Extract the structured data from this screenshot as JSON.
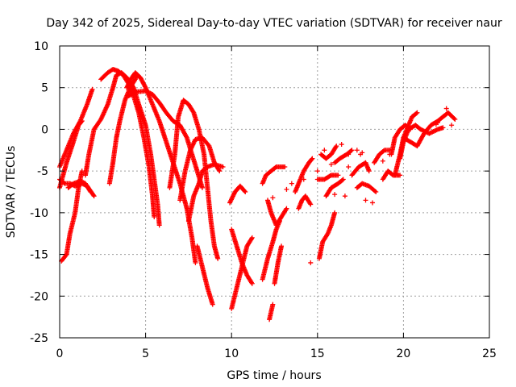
{
  "chart_data": {
    "type": "scatter",
    "title": "Day 342 of 2025, Sidereal Day-to-day VTEC variation (SDTVAR) for receiver naur",
    "xlabel": "GPS time / hours",
    "ylabel": "SDTVAR / TECUs",
    "xlim": [
      0,
      25
    ],
    "ylim": [
      -25,
      10
    ],
    "xticks": [
      0,
      5,
      10,
      15,
      20,
      25
    ],
    "yticks": [
      -25,
      -20,
      -15,
      -10,
      -5,
      0,
      5,
      10
    ],
    "xtick_labels": [
      "0",
      "5",
      "10",
      "15",
      "20",
      "25"
    ],
    "ytick_labels": [
      "-25",
      "-20",
      "-15",
      "-10",
      "-5",
      "0",
      "5",
      "10"
    ],
    "grid": true,
    "marker": "plus",
    "color": "#ff0000",
    "tracks": [
      [
        [
          0.0,
          -4.5
        ],
        [
          0.4,
          -2.5
        ],
        [
          0.8,
          -0.5
        ],
        [
          1.2,
          1.0
        ],
        [
          1.6,
          3.0
        ],
        [
          1.9,
          4.8
        ]
      ],
      [
        [
          0.0,
          -7.0
        ],
        [
          0.4,
          -4.0
        ],
        [
          0.8,
          -1.5
        ],
        [
          1.1,
          0.5
        ],
        [
          1.3,
          1.0
        ]
      ],
      [
        [
          0.0,
          -6.0
        ],
        [
          0.3,
          -6.5
        ],
        [
          0.6,
          -6.5
        ],
        [
          0.9,
          -6.8
        ],
        [
          1.3,
          -6.5
        ],
        [
          1.6,
          -6.8
        ],
        [
          2.0,
          -8.0
        ]
      ],
      [
        [
          0.1,
          -15.8
        ],
        [
          0.4,
          -15.0
        ],
        [
          0.6,
          -12.5
        ],
        [
          0.9,
          -10.0
        ],
        [
          1.1,
          -7.0
        ],
        [
          1.3,
          -5.0
        ]
      ],
      [
        [
          0.5,
          -7.0
        ],
        [
          0.8,
          -6.5
        ],
        [
          1.2,
          -6.2
        ],
        [
          1.5,
          -6.5
        ],
        [
          1.8,
          -7.5
        ]
      ],
      [
        [
          1.5,
          -5.5
        ],
        [
          1.7,
          -3.0
        ],
        [
          2.0,
          0.0
        ],
        [
          2.4,
          1.2
        ],
        [
          2.8,
          3.0
        ],
        [
          3.1,
          5.0
        ],
        [
          3.3,
          6.5
        ],
        [
          3.6,
          6.8
        ],
        [
          4.0,
          6.0
        ],
        [
          4.3,
          5.0
        ],
        [
          4.6,
          3.0
        ],
        [
          5.0,
          0.5
        ],
        [
          5.3,
          -3.0
        ],
        [
          5.5,
          -6.0
        ],
        [
          5.7,
          -9.0
        ],
        [
          5.8,
          -11.5
        ]
      ],
      [
        [
          2.4,
          6.0
        ],
        [
          2.8,
          6.8
        ],
        [
          3.1,
          7.2
        ],
        [
          3.4,
          7.0
        ],
        [
          3.7,
          6.5
        ],
        [
          4.0,
          5.5
        ],
        [
          4.3,
          4.0
        ],
        [
          4.6,
          2.0
        ],
        [
          4.9,
          -1.0
        ],
        [
          5.2,
          -4.5
        ],
        [
          5.4,
          -8.0
        ],
        [
          5.5,
          -10.5
        ]
      ],
      [
        [
          2.9,
          -6.5
        ],
        [
          3.1,
          -4.0
        ],
        [
          3.3,
          -1.0
        ],
        [
          3.5,
          1.0
        ],
        [
          3.8,
          3.5
        ],
        [
          4.1,
          5.0
        ],
        [
          4.4,
          6.0
        ],
        [
          4.5,
          6.5
        ]
      ],
      [
        [
          3.9,
          5.0
        ],
        [
          4.2,
          6.2
        ],
        [
          4.4,
          6.8
        ],
        [
          4.7,
          6.2
        ],
        [
          5.0,
          5.0
        ],
        [
          5.4,
          3.0
        ],
        [
          5.8,
          1.0
        ],
        [
          6.2,
          -1.5
        ],
        [
          6.6,
          -4.0
        ],
        [
          7.0,
          -6.5
        ],
        [
          7.4,
          -9.5
        ],
        [
          7.7,
          -13.0
        ],
        [
          7.9,
          -16.0
        ]
      ],
      [
        [
          4.0,
          4.0
        ],
        [
          4.5,
          4.5
        ],
        [
          5.0,
          4.6
        ],
        [
          5.4,
          4.2
        ],
        [
          5.8,
          3.2
        ],
        [
          6.2,
          2.0
        ],
        [
          6.6,
          1.0
        ],
        [
          7.0,
          0.5
        ],
        [
          7.4,
          -1.0
        ],
        [
          7.7,
          -3.0
        ],
        [
          8.0,
          -5.0
        ],
        [
          8.3,
          -7.0
        ]
      ],
      [
        [
          6.4,
          -7.0
        ],
        [
          6.7,
          -3.0
        ],
        [
          6.9,
          1.5
        ],
        [
          7.2,
          3.5
        ],
        [
          7.5,
          3.0
        ],
        [
          7.8,
          2.0
        ],
        [
          8.1,
          0.0
        ],
        [
          8.4,
          -3.0
        ],
        [
          8.6,
          -7.0
        ],
        [
          8.8,
          -11.0
        ],
        [
          9.0,
          -14.0
        ],
        [
          9.2,
          -15.5
        ]
      ],
      [
        [
          7.0,
          -8.5
        ],
        [
          7.3,
          -5.0
        ],
        [
          7.6,
          -2.5
        ],
        [
          7.9,
          -1.2
        ],
        [
          8.3,
          -1.0
        ],
        [
          8.7,
          -2.0
        ],
        [
          9.0,
          -4.0
        ],
        [
          9.3,
          -5.0
        ]
      ],
      [
        [
          7.5,
          -11.0
        ],
        [
          7.8,
          -8.0
        ],
        [
          8.1,
          -6.5
        ],
        [
          8.3,
          -5.0
        ],
        [
          8.6,
          -4.5
        ],
        [
          9.0,
          -4.2
        ],
        [
          9.5,
          -4.5
        ]
      ],
      [
        [
          8.0,
          -14.0
        ],
        [
          8.3,
          -16.5
        ],
        [
          8.6,
          -19.0
        ],
        [
          8.9,
          -21.0
        ]
      ],
      [
        [
          9.9,
          -8.8
        ],
        [
          10.2,
          -7.5
        ],
        [
          10.5,
          -6.8
        ],
        [
          10.8,
          -7.5
        ]
      ],
      [
        [
          10.0,
          -21.5
        ],
        [
          10.3,
          -19.0
        ],
        [
          10.6,
          -16.5
        ],
        [
          10.9,
          -14.0
        ],
        [
          11.2,
          -13.0
        ]
      ],
      [
        [
          10.0,
          -12.0
        ],
        [
          10.3,
          -14.0
        ],
        [
          10.6,
          -16.0
        ],
        [
          10.9,
          -17.5
        ],
        [
          11.2,
          -18.5
        ]
      ],
      [
        [
          11.8,
          -18.0
        ],
        [
          12.1,
          -15.5
        ],
        [
          12.4,
          -13.5
        ],
        [
          12.6,
          -12.0
        ],
        [
          12.8,
          -11.0
        ]
      ],
      [
        [
          11.8,
          -6.5
        ],
        [
          12.0,
          -5.5
        ],
        [
          12.3,
          -5.0
        ],
        [
          12.6,
          -4.5
        ],
        [
          13.1,
          -4.5
        ]
      ],
      [
        [
          12.1,
          -8.5
        ],
        [
          12.3,
          -10.0
        ],
        [
          12.6,
          -11.5
        ],
        [
          12.9,
          -10.5
        ],
        [
          13.2,
          -9.5
        ]
      ],
      [
        [
          12.5,
          -18.5
        ],
        [
          12.7,
          -16.0
        ],
        [
          12.9,
          -14.0
        ]
      ],
      [
        [
          12.2,
          -22.8
        ],
        [
          12.4,
          -21.0
        ]
      ],
      [
        [
          13.7,
          -7.5
        ],
        [
          14.0,
          -6.0
        ],
        [
          14.2,
          -5.0
        ],
        [
          14.5,
          -4.0
        ],
        [
          14.7,
          -3.5
        ]
      ],
      [
        [
          13.9,
          -9.5
        ],
        [
          14.1,
          -8.5
        ],
        [
          14.3,
          -8.0
        ],
        [
          14.6,
          -9.0
        ]
      ],
      [
        [
          15.1,
          -15.5
        ],
        [
          15.3,
          -13.5
        ],
        [
          15.6,
          -12.5
        ],
        [
          15.8,
          -11.5
        ],
        [
          16.0,
          -10.0
        ]
      ],
      [
        [
          15.2,
          -3.0
        ],
        [
          15.5,
          -3.5
        ],
        [
          15.8,
          -3.0
        ],
        [
          16.1,
          -2.0
        ]
      ],
      [
        [
          15.0,
          -6.0
        ],
        [
          15.4,
          -6.0
        ],
        [
          15.8,
          -5.5
        ],
        [
          16.2,
          -5.5
        ]
      ],
      [
        [
          15.5,
          -8.0
        ],
        [
          15.8,
          -7.0
        ],
        [
          16.2,
          -6.5
        ],
        [
          16.5,
          -6.0
        ]
      ],
      [
        [
          16.0,
          -4.0
        ],
        [
          16.3,
          -3.5
        ],
        [
          16.7,
          -3.0
        ],
        [
          17.0,
          -2.5
        ]
      ],
      [
        [
          17.0,
          -5.5
        ],
        [
          17.4,
          -4.5
        ],
        [
          17.8,
          -4.0
        ],
        [
          18.0,
          -5.0
        ]
      ],
      [
        [
          17.3,
          -7.0
        ],
        [
          17.6,
          -6.5
        ],
        [
          18.0,
          -6.8
        ],
        [
          18.4,
          -7.5
        ]
      ],
      [
        [
          18.3,
          -4.0
        ],
        [
          18.6,
          -3.0
        ],
        [
          18.9,
          -2.5
        ],
        [
          19.2,
          -2.5
        ]
      ],
      [
        [
          18.8,
          -6.0
        ],
        [
          19.1,
          -5.0
        ],
        [
          19.4,
          -5.5
        ],
        [
          19.8,
          -5.5
        ]
      ],
      [
        [
          19.3,
          -3.0
        ],
        [
          19.5,
          -1.0
        ],
        [
          19.8,
          0.0
        ],
        [
          20.1,
          0.5
        ],
        [
          20.4,
          0.0
        ]
      ],
      [
        [
          19.5,
          -5.5
        ],
        [
          19.8,
          -3.0
        ],
        [
          20.0,
          -1.0
        ],
        [
          20.3,
          0.5
        ],
        [
          20.5,
          1.5
        ],
        [
          20.8,
          2.0
        ]
      ],
      [
        [
          19.8,
          -3.5
        ],
        [
          20.0,
          -1.5
        ],
        [
          20.3,
          0.0
        ],
        [
          20.7,
          0.5
        ],
        [
          21.0,
          0.0
        ],
        [
          21.5,
          -0.5
        ],
        [
          22.0,
          0.0
        ],
        [
          22.3,
          0.2
        ]
      ],
      [
        [
          20.0,
          -1.0
        ],
        [
          20.4,
          -1.5
        ],
        [
          20.8,
          -2.0
        ],
        [
          21.2,
          -0.5
        ],
        [
          21.6,
          0.5
        ],
        [
          22.0,
          1.0
        ],
        [
          22.3,
          1.5
        ],
        [
          22.6,
          2.0
        ],
        [
          23.0,
          1.2
        ]
      ]
    ],
    "scattered_points": [
      [
        12.4,
        -8.2
      ],
      [
        13.2,
        -7.2
      ],
      [
        14.6,
        -16.0
      ],
      [
        15.4,
        -2.5
      ],
      [
        16.4,
        -1.8
      ],
      [
        16.8,
        -3.0
      ],
      [
        17.3,
        -2.5
      ],
      [
        17.6,
        -2.8
      ],
      [
        16.8,
        -4.5
      ],
      [
        16.6,
        -8.0
      ],
      [
        17.8,
        -8.5
      ],
      [
        18.2,
        -8.8
      ],
      [
        19.2,
        -3.0
      ],
      [
        22.0,
        0.8
      ],
      [
        22.5,
        2.5
      ],
      [
        22.8,
        0.5
      ],
      [
        21.9,
        0.6
      ],
      [
        15.0,
        -5.0
      ],
      [
        16.0,
        -7.8
      ],
      [
        17.5,
        -3.0
      ],
      [
        18.8,
        -3.8
      ],
      [
        14.2,
        -6.0
      ],
      [
        13.5,
        -6.5
      ],
      [
        15.8,
        -4.2
      ]
    ]
  }
}
